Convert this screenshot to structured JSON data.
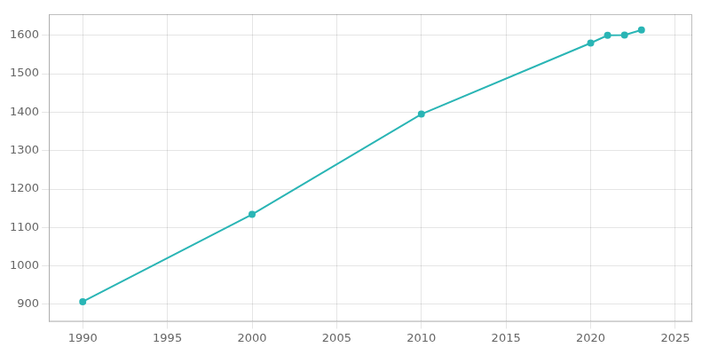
{
  "chart_data": {
    "type": "line",
    "x": [
      1990,
      2000,
      2010,
      2020,
      2021,
      2022,
      2023
    ],
    "values": [
      907,
      1134,
      1395,
      1580,
      1600,
      1601,
      1614
    ],
    "color": "#2ab5b5",
    "marker": "circle",
    "xlim": [
      1988,
      2026
    ],
    "ylim": [
      855,
      1655
    ],
    "xticks": [
      1990,
      1995,
      2000,
      2005,
      2010,
      2015,
      2020,
      2025
    ],
    "yticks": [
      900,
      1000,
      1100,
      1200,
      1300,
      1400,
      1500,
      1600
    ],
    "grid": true
  }
}
